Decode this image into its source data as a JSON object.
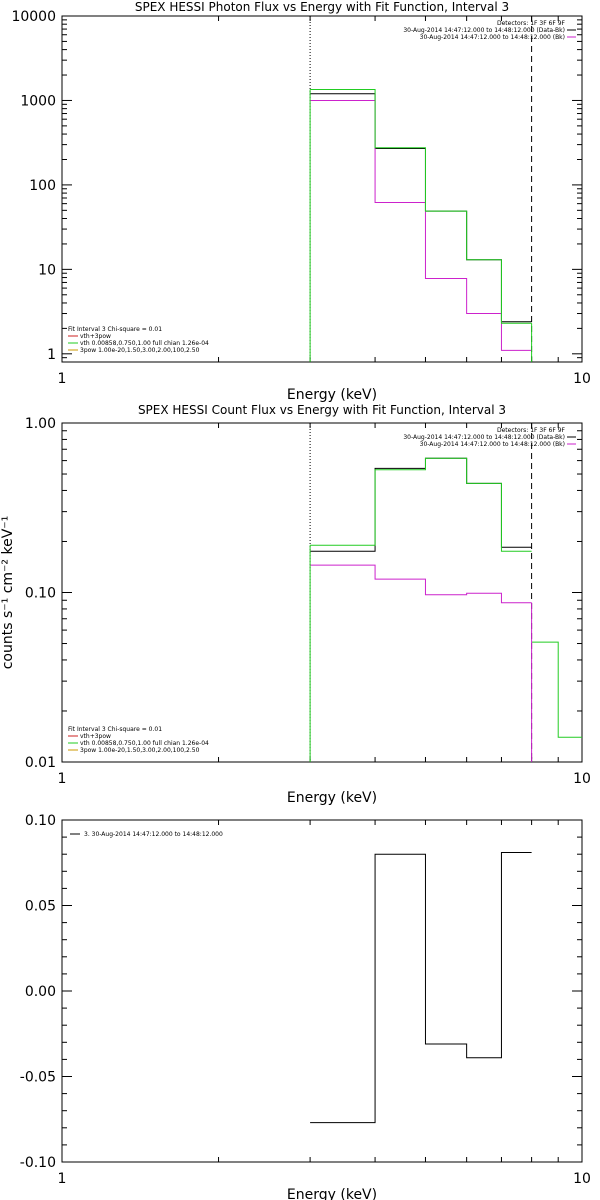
{
  "chart_data": [
    {
      "type": "line",
      "title": "SPEX HESSI Photon Flux vs Energy with Fit Function, Interval 3",
      "xlabel": "Energy (keV)",
      "ylabel": "",
      "xscale": "log",
      "yscale": "log",
      "xlim": [
        1,
        10
      ],
      "ylim": [
        0.8,
        10000
      ],
      "xticks": [
        "1",
        "10"
      ],
      "yticks": [
        {
          "v": 1,
          "label": "1"
        },
        {
          "v": 10,
          "label": "10"
        },
        {
          "v": 100,
          "label": "100"
        },
        {
          "v": 1000,
          "label": "1000"
        },
        {
          "v": 10000,
          "label": "10000"
        }
      ],
      "legend_right": [
        "Detectors: 1F 3F 6F 9F",
        "30-Aug-2014 14:47:12.000 to 14:48:12.000 (Data-Bk)",
        "30-Aug-2014 14:47:12.000 to 14:48:12.000 (Bk)"
      ],
      "legend_right_colors": [
        "",
        "#000000",
        "#cc22cc"
      ],
      "legend_left": [
        "Fit Interval 3   Chi-square = 0.01",
        "vth+3pow",
        "vth 0.00858,0.750,1.00  full chian 1.26e-04",
        "3pow 1.00e-20,1.50,3.00,2.00,100,2.50"
      ],
      "legend_left_colors": [
        "",
        "#cc2222",
        "#22cc22",
        "#cc9900"
      ],
      "vlines": [
        {
          "x": 3.0,
          "style": "dotted"
        },
        {
          "x": 8.0,
          "style": "dashed"
        }
      ],
      "edges": [
        3.0,
        4.0,
        5.0,
        6.0,
        7.0,
        8.0
      ],
      "series": [
        {
          "color": "#000000",
          "values": [
            1200,
            270,
            49,
            13,
            2.4
          ]
        },
        {
          "color": "#cc22cc",
          "values": [
            1000,
            62,
            7.8,
            3.0,
            1.1
          ]
        },
        {
          "color": "#22cc22",
          "values": [
            1350,
            275,
            49,
            13,
            2.3
          ]
        }
      ],
      "vert_to_bottom": [
        {
          "x": 3.0,
          "color": "#22cc22"
        },
        {
          "x": 8.0,
          "color": "#22cc22"
        }
      ]
    },
    {
      "type": "line",
      "title": "SPEX HESSI Count Flux vs Energy with Fit Function, Interval 3",
      "xlabel": "Energy (keV)",
      "ylabel": "counts s⁻¹ cm⁻² keV⁻¹",
      "xscale": "log",
      "yscale": "log",
      "xlim": [
        1,
        10
      ],
      "ylim": [
        0.01,
        1.0
      ],
      "xticks": [
        "1",
        "10"
      ],
      "yticks": [
        {
          "v": 0.01,
          "label": "0.01"
        },
        {
          "v": 0.1,
          "label": "0.10"
        },
        {
          "v": 1.0,
          "label": "1.00"
        }
      ],
      "legend_right": [
        "Detectors: 1F 3F 6F 9F",
        "30-Aug-2014 14:47:12.000 to 14:48:12.000 (Data-Bk)",
        "30-Aug-2014 14:47:12.000 to 14:48:12.000 (Bk)"
      ],
      "legend_right_colors": [
        "",
        "#000000",
        "#cc22cc"
      ],
      "legend_left": [
        "Fit Interval 3   Chi-square = 0.01",
        "vth+3pow",
        "vth 0.00858,0.750,1.00  full chian 1.26e-04",
        "3pow 1.00e-20,1.50,3.00,2.00,100,2.50"
      ],
      "legend_left_colors": [
        "",
        "#cc2222",
        "#22cc22",
        "#cc9900"
      ],
      "vlines": [
        {
          "x": 3.0,
          "style": "dotted"
        },
        {
          "x": 8.0,
          "style": "dashed"
        }
      ],
      "edges": [
        3.0,
        4.0,
        5.0,
        6.0,
        7.0,
        8.0
      ],
      "series": [
        {
          "color": "#000000",
          "values": [
            0.175,
            0.54,
            0.62,
            0.44,
            0.185
          ]
        },
        {
          "color": "#cc22cc",
          "values": [
            0.145,
            0.12,
            0.097,
            0.099,
            0.087
          ]
        },
        {
          "color": "#22cc22",
          "values": [
            0.19,
            0.53,
            0.62,
            0.44,
            0.175
          ]
        },
        {
          "color": "#22cc22",
          "edges": [
            8.0,
            9.0,
            10.0
          ],
          "values": [
            0.051,
            0.014
          ]
        }
      ],
      "vert_to_bottom": [
        {
          "x": 3.0,
          "color": "#22cc22"
        },
        {
          "x": 8.0,
          "color": "#cc22cc"
        }
      ]
    },
    {
      "type": "line",
      "title": "",
      "xlabel": "Energy (keV)",
      "ylabel": "",
      "xscale": "log",
      "yscale": "linear",
      "xlim": [
        1,
        10
      ],
      "ylim": [
        -0.1,
        0.1
      ],
      "xticks": [
        "1",
        "10"
      ],
      "yticks": [
        {
          "v": 0.1,
          "label": "0.10"
        },
        {
          "v": 0.05,
          "label": "0.05"
        },
        {
          "v": 0.0,
          "label": "0.00"
        },
        {
          "v": -0.05,
          "label": "-0.05"
        },
        {
          "v": -0.1,
          "label": "-0.10"
        }
      ],
      "legend_left_top": [
        "3. 30-Aug-2014 14:47:12.000 to 14:48:12.000"
      ],
      "edges": [
        3.0,
        4.0,
        5.0,
        6.0,
        7.0,
        8.0
      ],
      "series": [
        {
          "color": "#000000",
          "values": [
            -0.077,
            0.08,
            -0.031,
            -0.039,
            0.081
          ]
        }
      ]
    }
  ]
}
